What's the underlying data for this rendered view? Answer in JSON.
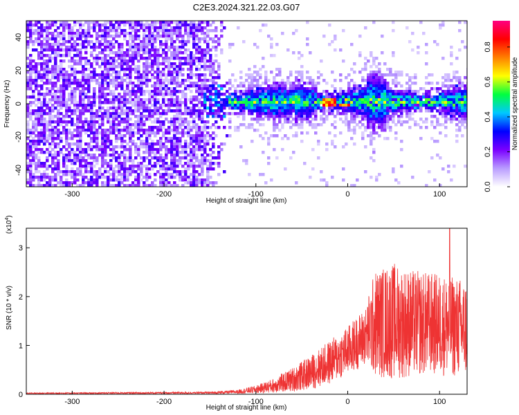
{
  "title": "C2E3.2024.321.22.03.G07",
  "chart_data": [
    {
      "id": "spectrogram",
      "type": "heatmap",
      "title": "C2E3.2024.321.22.03.G07",
      "xlabel": "Height of straight line (km)",
      "ylabel": "Frequency (Hz)",
      "xlim": [
        -350,
        130
      ],
      "ylim": [
        -50,
        50
      ],
      "xticks": [
        -300,
        -200,
        -100,
        0,
        100
      ],
      "yticks": [
        -40,
        -20,
        0,
        20,
        40
      ],
      "colorbar": {
        "label": "Normalized spectral amplitude",
        "range": [
          0.0,
          0.95
        ],
        "ticks": [
          "0.0",
          "0.2",
          "0.4",
          "0.6",
          "0.8"
        ],
        "tick_values": [
          0.0,
          0.2,
          0.4,
          0.6,
          0.8
        ],
        "colors": [
          "#ffffff",
          "#b99cff",
          "#7a00ff",
          "#0000ff",
          "#00c8ff",
          "#00ff40",
          "#ffff00",
          "#ff8000",
          "#ff0000",
          "#ff0080"
        ]
      },
      "features": {
        "noise_region_x": [
          -350,
          -130
        ],
        "signal_band_start_x": -160,
        "signal_center_freq": 2,
        "signal_halfwidth_hz": 8,
        "strongest_feature_x": [
          -30,
          5
        ]
      }
    },
    {
      "id": "snr",
      "type": "line",
      "xlabel": "Height of straight line (km)",
      "ylabel": "SNR (10 * v/v)",
      "yscale_label": "(x10",
      "yscale_exp": "4",
      "xlim": [
        -350,
        130
      ],
      "ylim": [
        0,
        3.4
      ],
      "xticks": [
        -300,
        -200,
        -100,
        0,
        100
      ],
      "yticks": [
        0,
        1,
        2,
        3
      ],
      "color": "#ee3333",
      "envelope": {
        "x": [
          -350,
          -150,
          -120,
          -100,
          -80,
          -60,
          -40,
          -20,
          0,
          10,
          20,
          25,
          30,
          50,
          70,
          90,
          110,
          130
        ],
        "mean": [
          0.02,
          0.03,
          0.05,
          0.1,
          0.18,
          0.3,
          0.45,
          0.65,
          0.9,
          1.05,
          1.2,
          1.35,
          1.45,
          1.5,
          1.45,
          1.45,
          1.4,
          1.35
        ],
        "spread": [
          0.01,
          0.02,
          0.04,
          0.08,
          0.15,
          0.25,
          0.35,
          0.45,
          0.5,
          0.55,
          0.6,
          0.9,
          1.1,
          1.2,
          1.1,
          1.05,
          1.05,
          1.0
        ]
      },
      "peak_value": 3.4,
      "peak_x": 111
    }
  ]
}
